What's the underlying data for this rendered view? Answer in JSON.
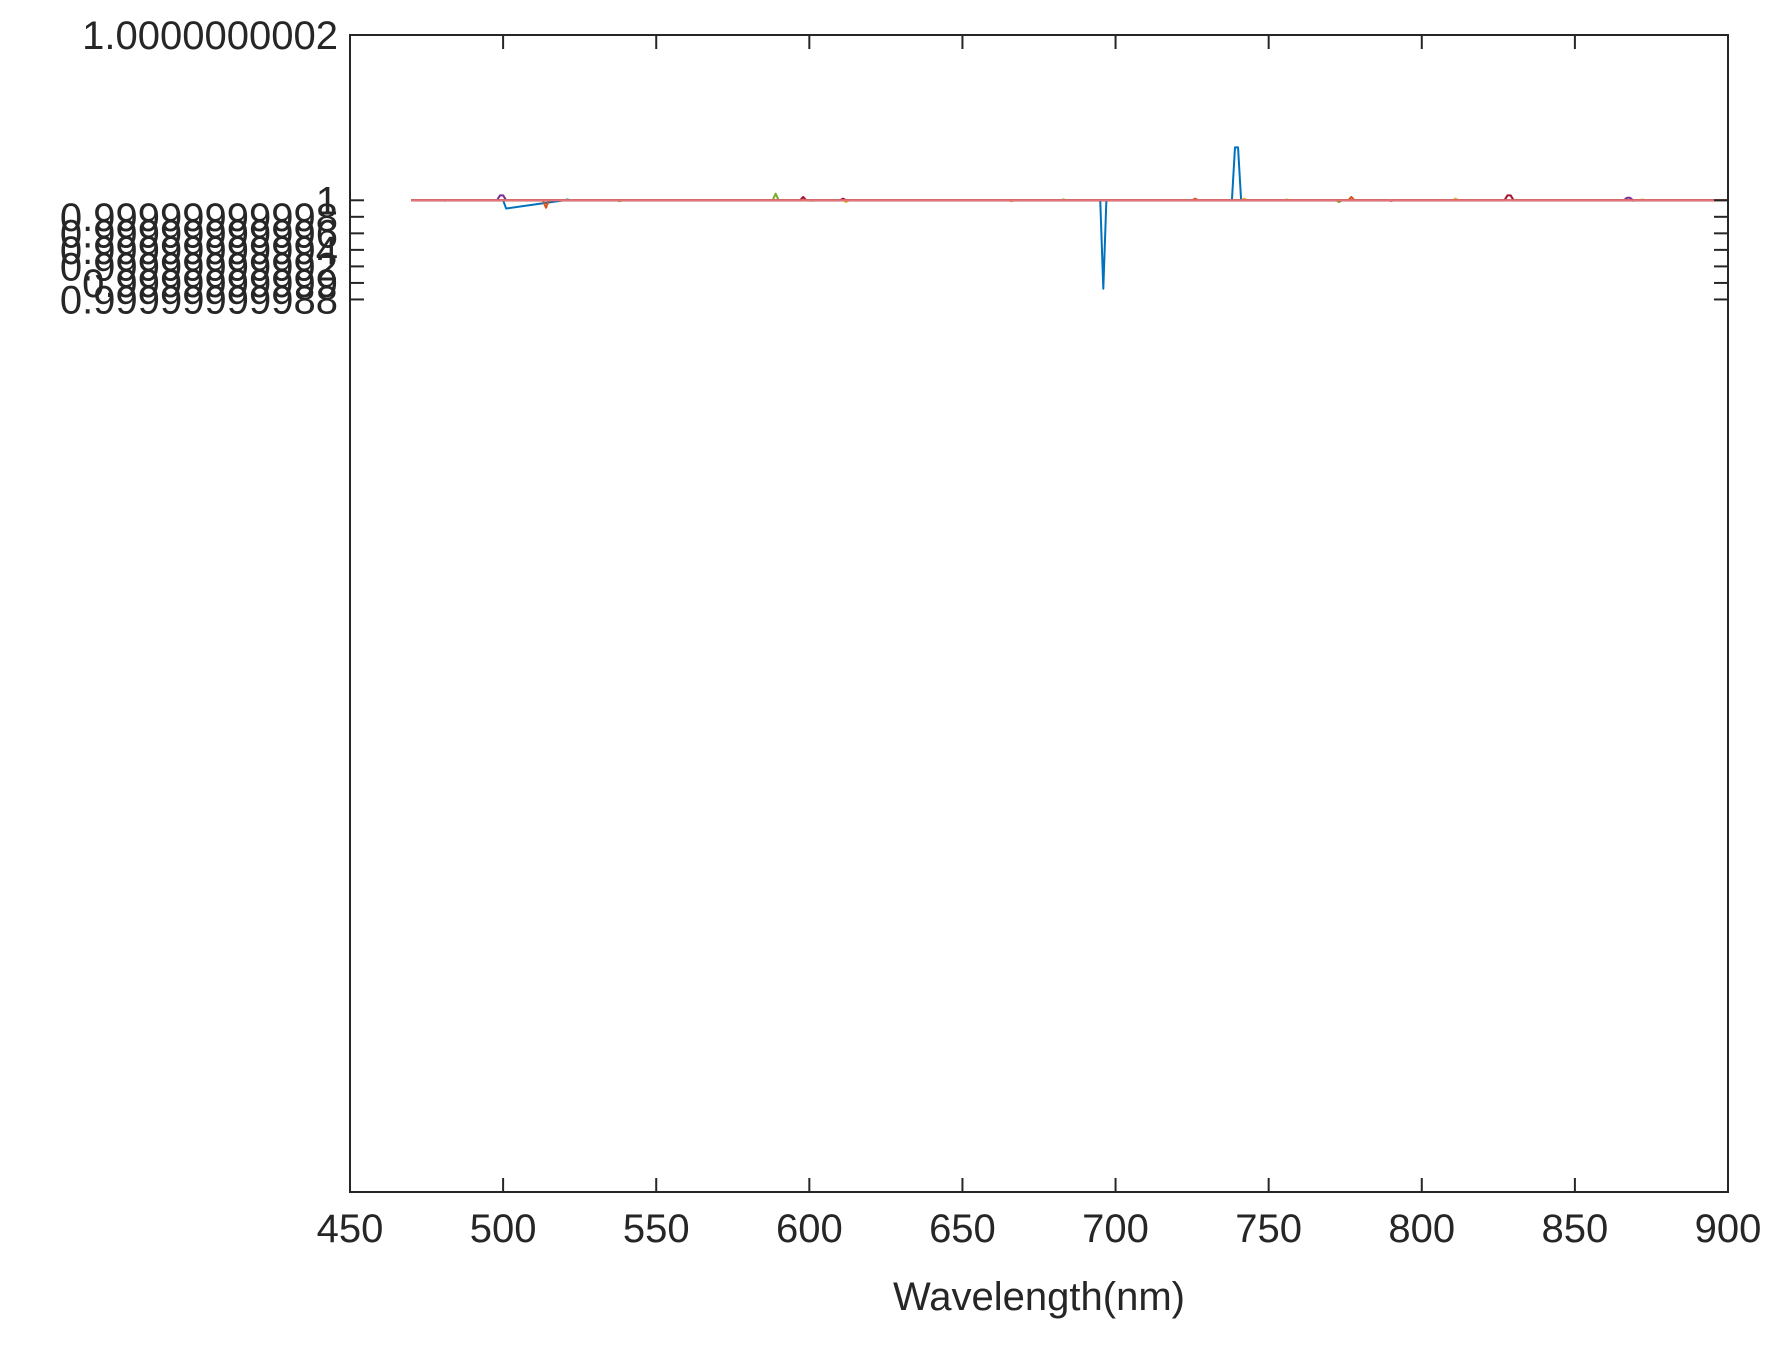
{
  "chart_data": {
    "type": "line",
    "title": "",
    "xlabel": "Wavelength(nm)",
    "ylabel": "",
    "xlim": [
      450,
      900
    ],
    "ylim": [
      0.9999999988,
      1.0000000002
    ],
    "grid": false,
    "legend": "none",
    "x_ticks": [
      {
        "value": 450,
        "label": "450"
      },
      {
        "value": 500,
        "label": "500"
      },
      {
        "value": 550,
        "label": "550"
      },
      {
        "value": 600,
        "label": "600"
      },
      {
        "value": 650,
        "label": "650"
      },
      {
        "value": 700,
        "label": "700"
      },
      {
        "value": 750,
        "label": "750"
      },
      {
        "value": 800,
        "label": "800"
      },
      {
        "value": 850,
        "label": "850"
      },
      {
        "value": 900,
        "label": "900"
      }
    ],
    "y_ticks": [
      {
        "value": 1.0000000002,
        "label": "1.0000000002"
      },
      {
        "value": 1.0,
        "label": "1"
      },
      {
        "value": 0.99999999998,
        "label": "0.99999999998"
      },
      {
        "value": 0.99999999996,
        "label": "0.99999999996"
      },
      {
        "value": 0.99999999994,
        "label": "0.99999999994"
      },
      {
        "value": 0.99999999992,
        "label": "0.99999999992"
      },
      {
        "value": 0.9999999999,
        "label": "0.9999999999"
      },
      {
        "value": 0.99999999988,
        "label": "0.99999999988"
      }
    ],
    "series": [
      {
        "color": "#0072BD",
        "x": [
          470,
          500,
          501,
          520,
          521,
          522,
          695,
          696,
          697,
          698,
          738,
          739,
          740,
          741,
          900
        ],
        "y": [
          1.0,
          1.0,
          0.99999999999,
          1.0,
          1.000000000001,
          1.0,
          1.0,
          0.999999999893,
          1.0,
          1.0,
          1.0,
          1.000000000064,
          1.000000000064,
          1.0,
          1.0
        ]
      },
      {
        "color": "#D95319",
        "x": [
          470,
          513,
          514,
          515,
          516,
          725,
          726,
          727,
          775,
          776,
          777,
          778,
          900
        ],
        "y": [
          1.0,
          1.0,
          0.999999999991,
          1.0,
          1.0,
          1.0,
          1.000000000002,
          1.0,
          1.0,
          1.0,
          1.000000000004,
          1.0,
          1.0
        ]
      },
      {
        "color": "#EDB120",
        "x": [
          470,
          480,
          481,
          482,
          610,
          611,
          612,
          613,
          665,
          666,
          667,
          741,
          742,
          743,
          755,
          756,
          757,
          810,
          811,
          812,
          871,
          872,
          873,
          900
        ],
        "y": [
          1.0,
          1.0,
          0.9999999999995,
          1.0,
          1.0,
          1.0,
          0.999999999998,
          1.0,
          1.0,
          0.999999999999,
          1.0,
          1.0,
          1.000000000002,
          1.0,
          1.0,
          1.000000000001,
          1.0,
          1.0,
          1.000000000002,
          1.0,
          1.0,
          1.000000000001,
          1.0,
          1.0
        ]
      },
      {
        "color": "#7E2F8E",
        "x": [
          470,
          498,
          499,
          500,
          501,
          866,
          867,
          868,
          869,
          900
        ],
        "y": [
          1.0,
          1.0,
          1.000000000006,
          1.000000000006,
          1.0,
          1.0,
          1.000000000003,
          1.000000000003,
          1.0,
          1.0
        ]
      },
      {
        "color": "#77AC30",
        "x": [
          470,
          537,
          538,
          539,
          588,
          589,
          590,
          600,
          601,
          602,
          682,
          683,
          684,
          772,
          773,
          774,
          868,
          869,
          870,
          900
        ],
        "y": [
          1.0,
          1.0,
          0.999999999999,
          1.0,
          1.0,
          1.000000000008,
          1.0,
          1.0,
          0.9999999999995,
          1.0,
          1.0,
          1.000000000001,
          1.0,
          1.0,
          0.999999999998,
          1.0,
          1.0,
          0.9999999999995,
          1.0,
          1.0
        ]
      },
      {
        "color": "#A2142F",
        "x": [
          470,
          597,
          598,
          599,
          610,
          611,
          612,
          789,
          790,
          791,
          827,
          828,
          829,
          830,
          900
        ],
        "y": [
          1.0,
          1.0,
          1.000000000004,
          1.0,
          1.0,
          1.000000000002,
          1.0,
          1.0,
          0.9999999999995,
          1.0,
          1.0,
          1.000000000006,
          1.000000000006,
          1.0,
          1.0
        ]
      },
      {
        "color": "#E8737B",
        "x": [
          470,
          900
        ],
        "y": [
          1.0,
          1.0
        ]
      }
    ]
  }
}
